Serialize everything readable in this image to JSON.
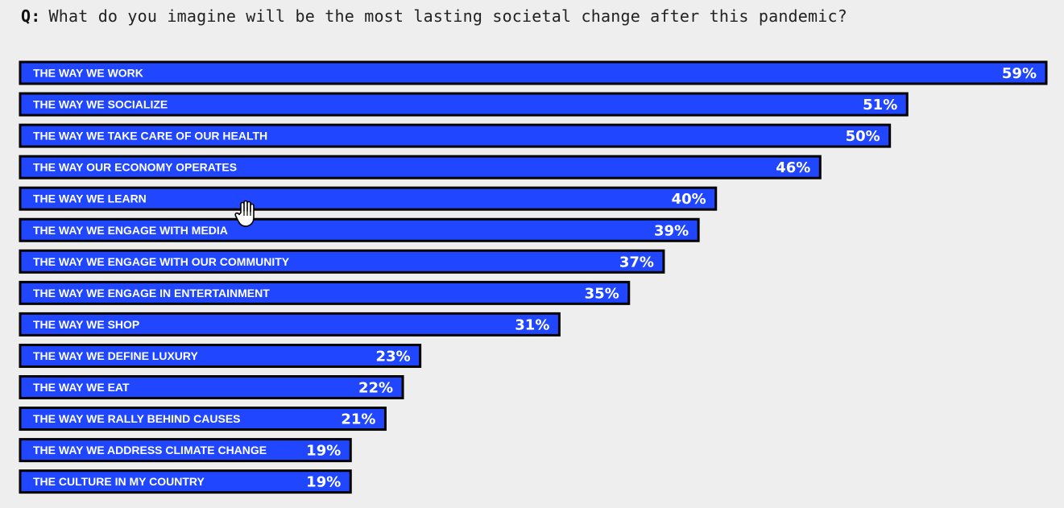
{
  "question": {
    "prefix": "Q:",
    "text": "What do you imagine will be the most lasting societal change after this pandemic?"
  },
  "colors": {
    "bar_fill": "#2047ff",
    "bar_border": "#000000",
    "text_light": "#ffffff",
    "background": "#eeeeee"
  },
  "cursor": {
    "icon": "hand-pointer-icon"
  },
  "chart_data": {
    "type": "bar",
    "orientation": "horizontal",
    "xlim": [
      0,
      59
    ],
    "categories": [
      "THE WAY WE WORK",
      "THE WAY WE SOCIALIZE",
      "THE WAY WE TAKE CARE OF OUR HEALTH",
      "THE WAY OUR ECONOMY OPERATES",
      "THE WAY WE LEARN",
      "THE WAY WE ENGAGE WITH MEDIA",
      "THE WAY WE ENGAGE WITH OUR COMMUNITY",
      "THE WAY WE ENGAGE IN ENTERTAINMENT",
      "THE WAY WE SHOP",
      "THE WAY WE DEFINE LUXURY",
      "THE WAY WE EAT",
      "THE WAY WE RALLY BEHIND CAUSES",
      "THE WAY WE ADDRESS CLIMATE CHANGE",
      "THE CULTURE IN MY COUNTRY"
    ],
    "values": [
      59,
      51,
      50,
      46,
      40,
      39,
      37,
      35,
      31,
      23,
      22,
      21,
      19,
      19
    ],
    "value_labels": [
      "59%",
      "51%",
      "50%",
      "46%",
      "40%",
      "39%",
      "37%",
      "35%",
      "31%",
      "23%",
      "22%",
      "21%",
      "19%",
      "19%"
    ],
    "unit": "%"
  }
}
